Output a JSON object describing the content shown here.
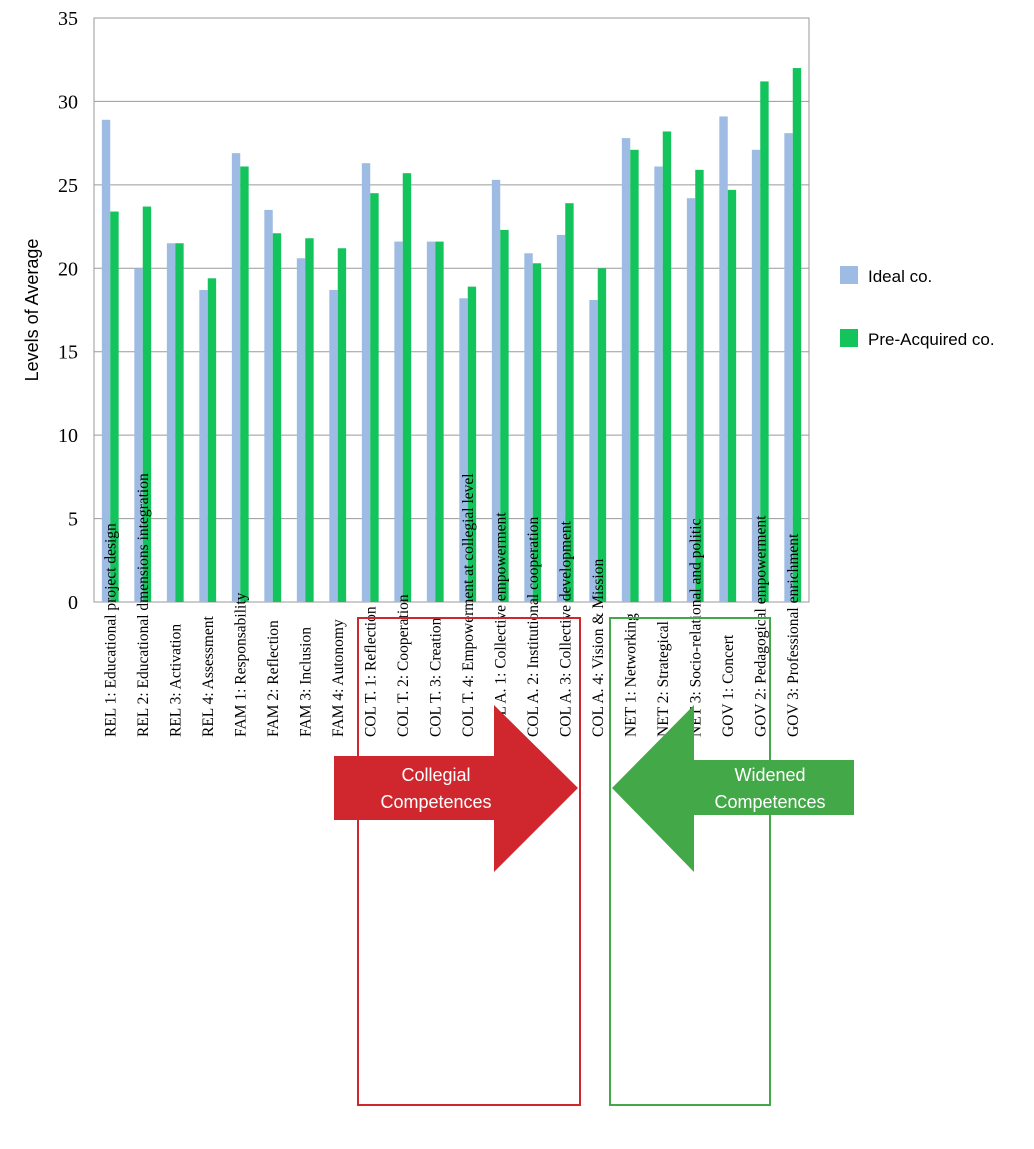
{
  "chart_data": {
    "type": "bar",
    "ylabel": "Levels of Average",
    "ylim": [
      0,
      35
    ],
    "yticks": [
      0,
      5,
      10,
      15,
      20,
      25,
      30,
      35
    ],
    "grid": true,
    "legend_position": "right",
    "categories": [
      "REL 1: Educational project design",
      "REL 2: Educational dmensions integration",
      "REL 3: Activation",
      "REL 4: Assessment",
      "FAM 1: Responsability",
      "FAM 2: Reflection",
      "FAM 3: Inclusion",
      "FAM 4: Autonomy",
      "COL T. 1: Reflection",
      "COL T. 2: Cooperation",
      "COL T. 3: Creation",
      "COL T. 4: Empowerment at collegial level",
      "COL A. 1: Collective empowerment",
      "COL A. 2: Institutional cooperation",
      "COL A. 3: Collective development",
      "COL A. 4: Vision & Mission",
      "NET 1: Networking",
      "NET 2: Strategical",
      "NET 3: Socio-relational and politic",
      "GOV 1: Concert",
      "GOV 2: Pedagogical empowerment",
      "GOV 3: Professional enrichment"
    ],
    "series": [
      {
        "name": "Ideal co.",
        "color": "#9dbbe3",
        "values": [
          28.9,
          20.0,
          21.5,
          18.7,
          26.9,
          23.5,
          20.6,
          18.7,
          26.3,
          21.6,
          21.6,
          18.2,
          25.3,
          20.9,
          22.0,
          18.1,
          27.8,
          26.1,
          24.2,
          29.1,
          27.1,
          28.1
        ]
      },
      {
        "name": "Pre-Acquired co.",
        "color": "#13c35c",
        "values": [
          23.4,
          23.7,
          21.5,
          19.4,
          26.1,
          22.1,
          21.8,
          21.2,
          24.5,
          25.7,
          21.6,
          18.9,
          22.3,
          20.3,
          23.9,
          20.0,
          27.1,
          28.2,
          25.9,
          24.7,
          31.2,
          32.0
        ]
      }
    ],
    "annotations": [
      {
        "label_line1": "Collegial",
        "label_line2": "Competences",
        "color": "#d0272e",
        "direction": "right",
        "group_start": "COL T. 1: Reflection",
        "group_end": "COL A. 3: Collective development"
      },
      {
        "label_line1": "Widened",
        "label_line2": "Competences",
        "color": "#43a847",
        "direction": "left",
        "group_start": "NET 1: Networking",
        "group_end": "GOV 2: Pedagogical empowerment"
      }
    ]
  }
}
